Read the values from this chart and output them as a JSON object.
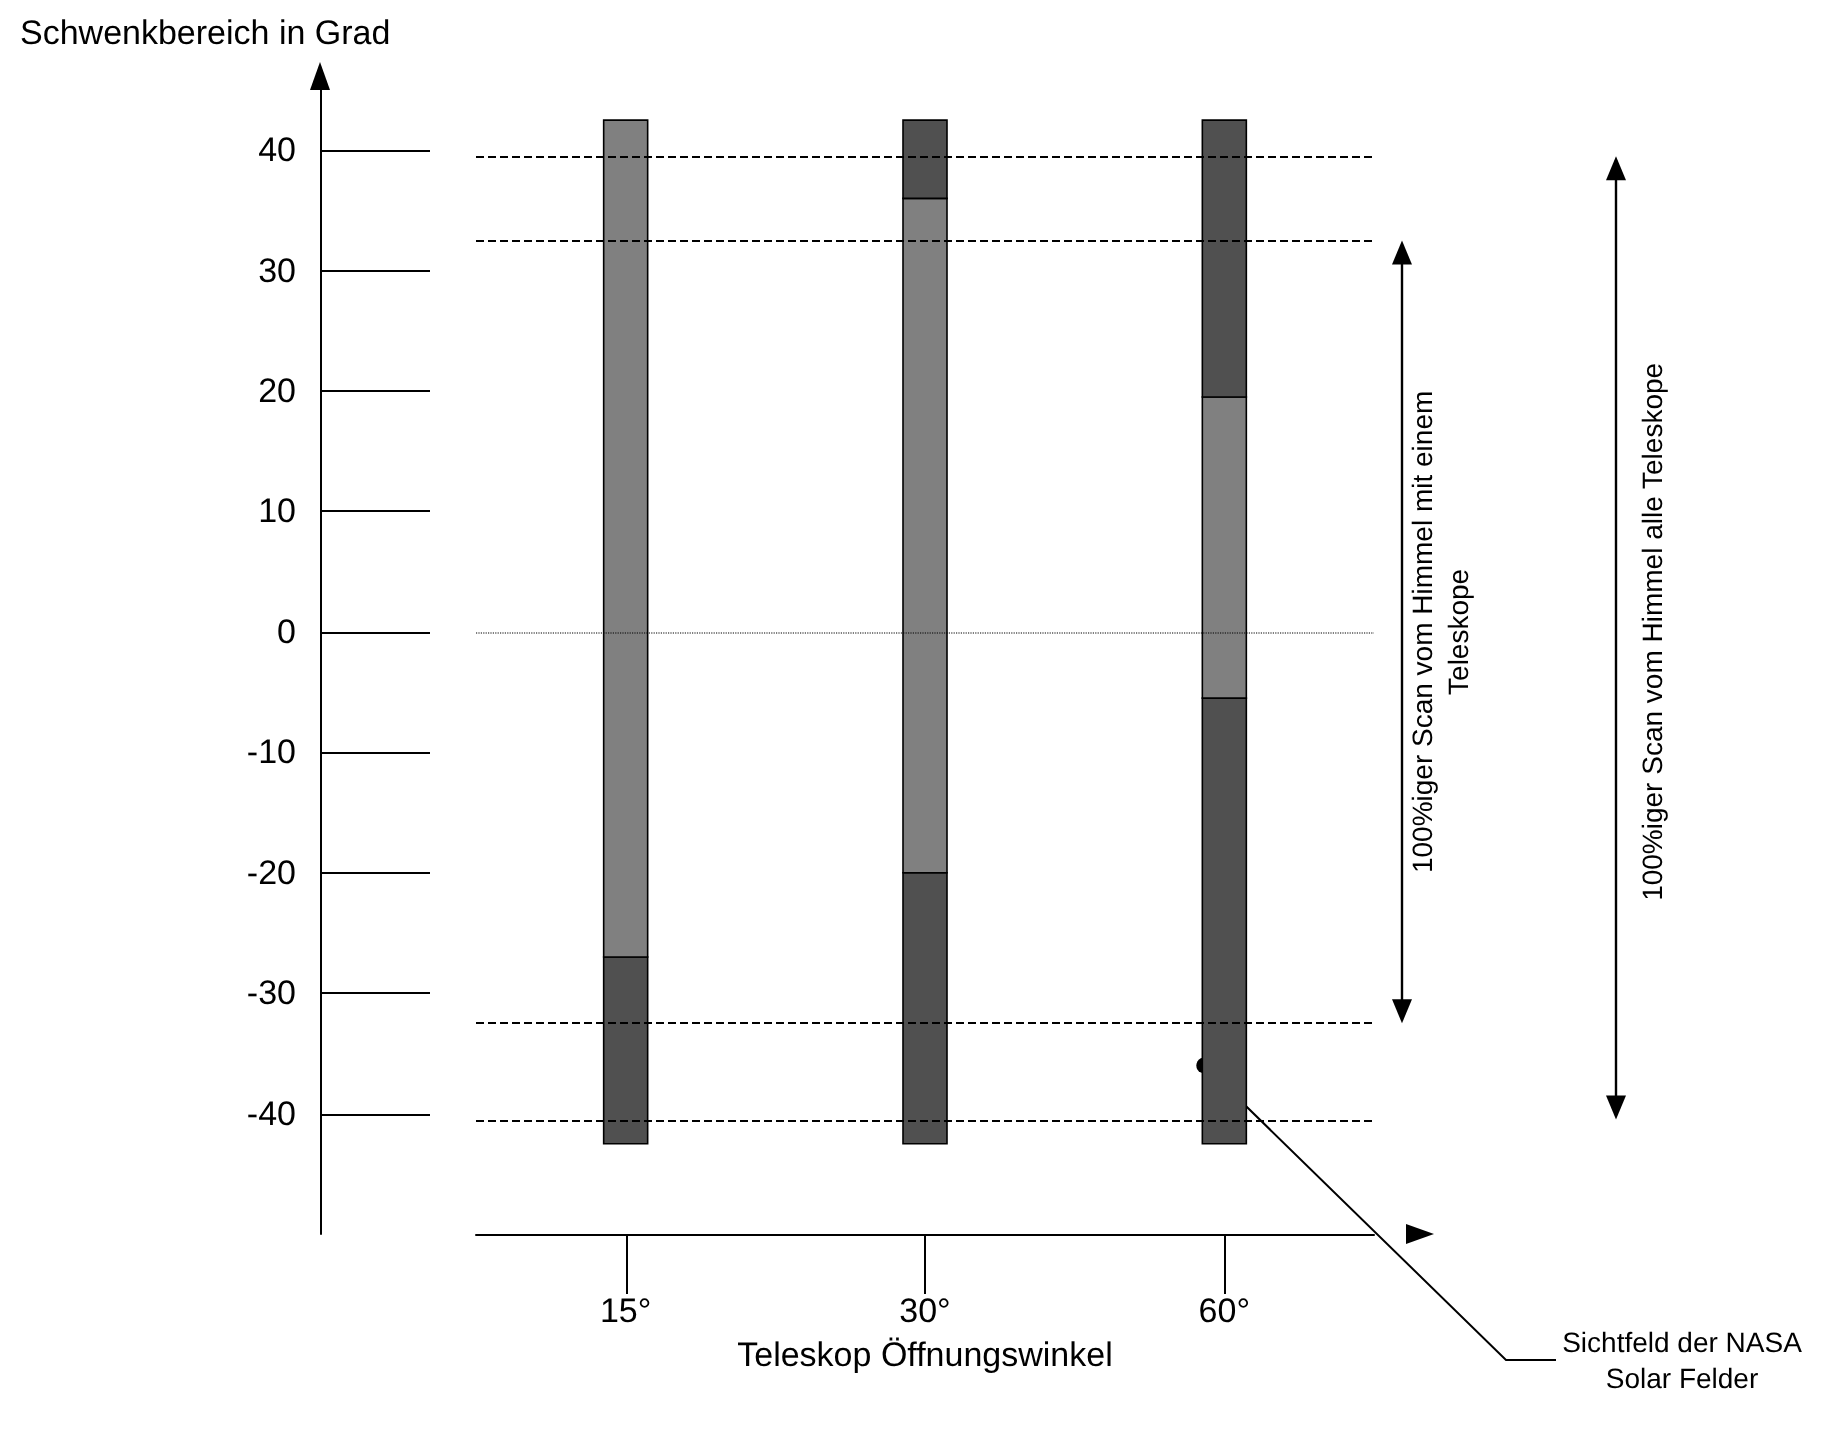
{
  "chart_data": {
    "type": "bar",
    "xlabel": "Teleskop Öffnungswinkel",
    "ylabel": "Schwenkbereich in Grad",
    "categories": [
      "15°",
      "30°",
      "60°"
    ],
    "series": [
      {
        "color": "#505050",
        "base": [
          -42.5,
          -42.5,
          -42.5
        ],
        "values": [
          15.5,
          22.5,
          37
        ]
      },
      {
        "color": "#808080",
        "base": [
          -27,
          -20,
          -5.5
        ],
        "values": [
          69.5,
          56,
          25
        ]
      },
      {
        "color": "#505050",
        "base": [
          null,
          36,
          19.5
        ],
        "values": [
          null,
          6.5,
          23
        ]
      }
    ],
    "ylim": [
      -50,
      45
    ],
    "yticks": [
      -40,
      -30,
      -20,
      -10,
      0,
      10,
      20,
      30,
      40
    ],
    "grid": false,
    "ref_lines": [
      {
        "axis": "y",
        "value": 39.5,
        "line_style": "dashed",
        "color": "#000000"
      },
      {
        "axis": "y",
        "value": 32.5,
        "line_style": "dashed",
        "color": "#000000"
      },
      {
        "axis": "y",
        "value": 0,
        "line_style": "dotted",
        "color": "#000000"
      },
      {
        "axis": "y",
        "value": -32.5,
        "line_style": "dashed",
        "color": "#000000"
      },
      {
        "axis": "y",
        "value": -40.5,
        "line_style": "dashed",
        "color": "#000000"
      }
    ],
    "annotations": [
      "100%iger Scan vom Himmel mit einem\nTeleskope",
      "100%iger Scan vom Himmel alle Teleskope",
      "Sichtfeld der NASA\nSolar Felder"
    ]
  }
}
